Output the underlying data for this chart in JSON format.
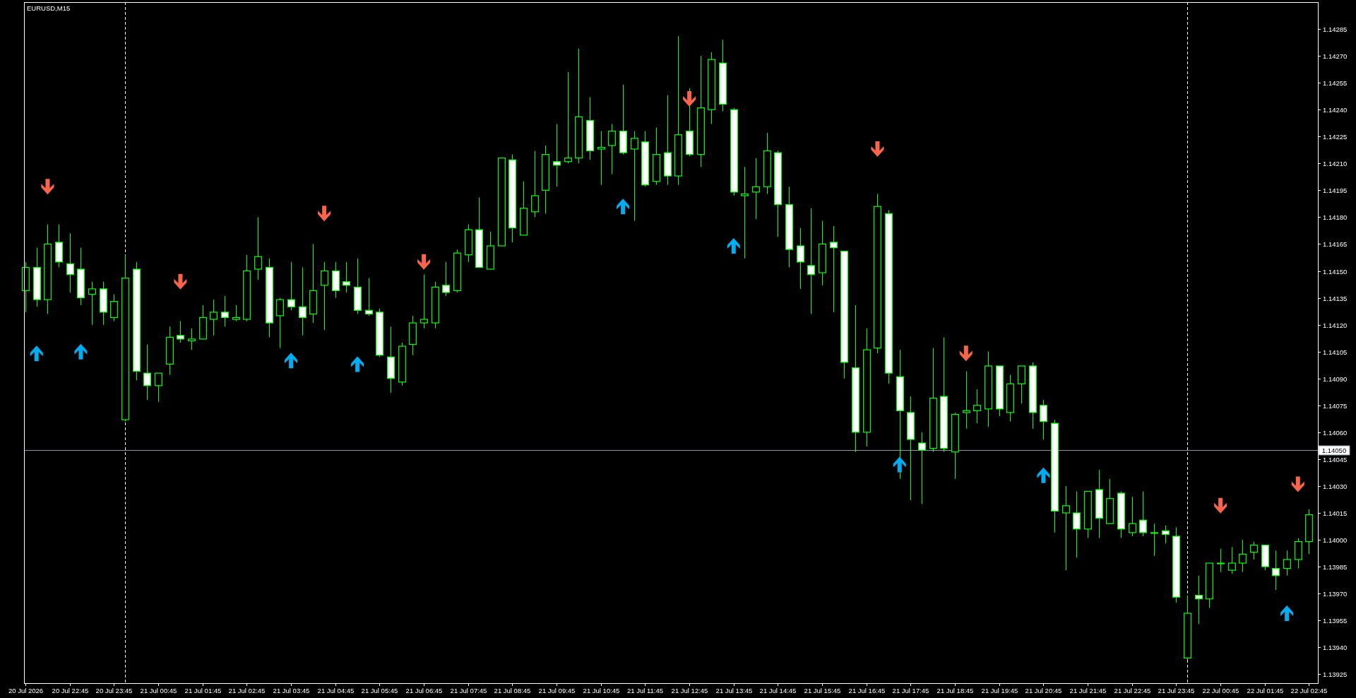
{
  "chart_data": {
    "type": "candlestick",
    "title": "EURUSD,M15",
    "x": [
      "2026-07-20T21:45",
      "2026-07-20T22:00",
      "2026-07-20T22:15",
      "2026-07-20T22:30",
      "2026-07-20T22:45",
      "2026-07-20T23:00",
      "2026-07-20T23:15",
      "2026-07-20T23:30",
      "2026-07-20T23:45",
      "2026-07-21T00:00",
      "2026-07-21T00:15",
      "2026-07-21T00:30",
      "2026-07-21T00:45",
      "2026-07-21T01:00",
      "2026-07-21T01:15",
      "2026-07-21T01:30",
      "2026-07-21T01:45",
      "2026-07-21T02:00",
      "2026-07-21T02:15",
      "2026-07-21T02:30",
      "2026-07-21T02:45",
      "2026-07-21T03:00",
      "2026-07-21T03:15",
      "2026-07-21T03:30",
      "2026-07-21T03:45",
      "2026-07-21T04:00",
      "2026-07-21T04:15",
      "2026-07-21T04:30",
      "2026-07-21T04:45",
      "2026-07-21T05:00",
      "2026-07-21T05:15",
      "2026-07-21T05:30",
      "2026-07-21T05:45",
      "2026-07-21T06:00",
      "2026-07-21T06:15",
      "2026-07-21T06:30",
      "2026-07-21T06:45",
      "2026-07-21T07:00",
      "2026-07-21T07:15",
      "2026-07-21T07:30",
      "2026-07-21T07:45",
      "2026-07-21T08:00",
      "2026-07-21T08:15",
      "2026-07-21T08:30",
      "2026-07-21T08:45",
      "2026-07-21T09:00",
      "2026-07-21T09:15",
      "2026-07-21T09:30",
      "2026-07-21T09:45",
      "2026-07-21T10:00",
      "2026-07-21T10:15",
      "2026-07-21T10:30",
      "2026-07-21T10:45",
      "2026-07-21T11:00",
      "2026-07-21T11:15",
      "2026-07-21T11:30",
      "2026-07-21T11:45",
      "2026-07-21T12:00",
      "2026-07-21T12:15",
      "2026-07-21T12:30",
      "2026-07-21T12:45",
      "2026-07-21T13:00",
      "2026-07-21T13:15",
      "2026-07-21T13:30",
      "2026-07-21T13:45",
      "2026-07-21T14:00",
      "2026-07-21T14:15",
      "2026-07-21T14:30",
      "2026-07-21T14:45",
      "2026-07-21T15:00",
      "2026-07-21T15:15",
      "2026-07-21T15:30",
      "2026-07-21T15:45",
      "2026-07-21T16:00",
      "2026-07-21T16:15",
      "2026-07-21T16:30",
      "2026-07-21T16:45",
      "2026-07-21T17:00",
      "2026-07-21T17:15",
      "2026-07-21T17:30",
      "2026-07-21T17:45",
      "2026-07-21T18:00",
      "2026-07-21T18:15",
      "2026-07-21T18:30",
      "2026-07-21T18:45",
      "2026-07-21T19:00",
      "2026-07-21T19:15",
      "2026-07-21T19:30",
      "2026-07-21T19:45",
      "2026-07-21T20:00",
      "2026-07-21T20:15",
      "2026-07-21T20:30",
      "2026-07-21T20:45",
      "2026-07-21T21:00",
      "2026-07-21T21:15",
      "2026-07-21T21:30",
      "2026-07-21T21:45",
      "2026-07-21T22:00",
      "2026-07-21T22:15",
      "2026-07-21T22:30",
      "2026-07-21T22:45",
      "2026-07-21T23:00",
      "2026-07-21T23:15",
      "2026-07-21T23:30",
      "2026-07-21T23:45",
      "2026-07-22T00:00",
      "2026-07-22T00:15",
      "2026-07-22T00:30",
      "2026-07-22T00:45",
      "2026-07-22T01:00",
      "2026-07-22T01:15",
      "2026-07-22T01:30",
      "2026-07-22T01:45",
      "2026-07-22T02:00",
      "2026-07-22T02:15",
      "2026-07-22T02:30",
      "2026-07-22T02:45"
    ],
    "ohlc": [
      [
        1.14139,
        1.14155,
        1.14127,
        1.14152
      ],
      [
        1.14152,
        1.14163,
        1.1413,
        1.14134
      ],
      [
        1.14134,
        1.14176,
        1.14126,
        1.14165
      ],
      [
        1.14166,
        1.14176,
        1.14152,
        1.14155
      ],
      [
        1.14154,
        1.14171,
        1.14138,
        1.14148
      ],
      [
        1.14151,
        1.14163,
        1.14131,
        1.14135
      ],
      [
        1.14137,
        1.14144,
        1.1412,
        1.1414
      ],
      [
        1.1414,
        1.14144,
        1.1412,
        1.14127
      ],
      [
        1.14124,
        1.14137,
        1.14122,
        1.14133
      ],
      [
        1.14067,
        1.14159,
        1.14066,
        1.14146
      ],
      [
        1.14151,
        1.14155,
        1.14089,
        1.14094
      ],
      [
        1.14093,
        1.14109,
        1.14078,
        1.14086
      ],
      [
        1.14086,
        1.14093,
        1.14077,
        1.14093
      ],
      [
        1.14098,
        1.14119,
        1.14092,
        1.14113
      ],
      [
        1.14114,
        1.14122,
        1.1411,
        1.14112
      ],
      [
        1.14111,
        1.14118,
        1.14106,
        1.14112
      ],
      [
        1.14112,
        1.14131,
        1.14112,
        1.14124
      ],
      [
        1.14123,
        1.14134,
        1.14114,
        1.14127
      ],
      [
        1.14127,
        1.14136,
        1.14119,
        1.14124
      ],
      [
        1.14123,
        1.14131,
        1.14122,
        1.14124
      ],
      [
        1.14123,
        1.14159,
        1.14122,
        1.1415
      ],
      [
        1.14151,
        1.1418,
        1.14145,
        1.14158
      ],
      [
        1.14152,
        1.14157,
        1.14113,
        1.14121
      ],
      [
        1.14125,
        1.14135,
        1.14107,
        1.14134
      ],
      [
        1.14134,
        1.14155,
        1.14128,
        1.1413
      ],
      [
        1.1413,
        1.14152,
        1.14114,
        1.14124
      ],
      [
        1.14126,
        1.14165,
        1.14121,
        1.14139
      ],
      [
        1.14142,
        1.14155,
        1.14117,
        1.1415
      ],
      [
        1.1415,
        1.14155,
        1.14135,
        1.14139
      ],
      [
        1.14144,
        1.14155,
        1.14138,
        1.14142
      ],
      [
        1.14141,
        1.14157,
        1.14126,
        1.14128
      ],
      [
        1.14128,
        1.14146,
        1.14125,
        1.14126
      ],
      [
        1.14127,
        1.14129,
        1.14102,
        1.14103
      ],
      [
        1.14102,
        1.14119,
        1.14082,
        1.1409
      ],
      [
        1.14088,
        1.1411,
        1.14086,
        1.14108
      ],
      [
        1.14109,
        1.14125,
        1.14103,
        1.14121
      ],
      [
        1.14121,
        1.14148,
        1.14118,
        1.14123
      ],
      [
        1.14121,
        1.14144,
        1.14118,
        1.14141
      ],
      [
        1.14142,
        1.14155,
        1.14136,
        1.14138
      ],
      [
        1.14139,
        1.14162,
        1.14138,
        1.1416
      ],
      [
        1.14159,
        1.14176,
        1.14155,
        1.14173
      ],
      [
        1.14173,
        1.14191,
        1.14152,
        1.14152
      ],
      [
        1.14151,
        1.14172,
        1.14151,
        1.14164
      ],
      [
        1.14164,
        1.14213,
        1.14164,
        1.14213
      ],
      [
        1.14212,
        1.14215,
        1.14166,
        1.14174
      ],
      [
        1.1417,
        1.142,
        1.1417,
        1.14185
      ],
      [
        1.14183,
        1.14217,
        1.1418,
        1.14192
      ],
      [
        1.14195,
        1.1422,
        1.14182,
        1.14215
      ],
      [
        1.14211,
        1.14232,
        1.14197,
        1.14209
      ],
      [
        1.14211,
        1.14261,
        1.1421,
        1.14213
      ],
      [
        1.14213,
        1.14274,
        1.1421,
        1.14236
      ],
      [
        1.14234,
        1.14247,
        1.14212,
        1.14217
      ],
      [
        1.14218,
        1.14228,
        1.14198,
        1.14219
      ],
      [
        1.1422,
        1.14232,
        1.14204,
        1.14228
      ],
      [
        1.14228,
        1.14254,
        1.14215,
        1.14216
      ],
      [
        1.14218,
        1.14228,
        1.14178,
        1.14224
      ],
      [
        1.14222,
        1.14228,
        1.14197,
        1.14198
      ],
      [
        1.142,
        1.1423,
        1.14198,
        1.14215
      ],
      [
        1.14216,
        1.14248,
        1.14198,
        1.14203
      ],
      [
        1.14203,
        1.14281,
        1.14198,
        1.14226
      ],
      [
        1.14228,
        1.14252,
        1.14214,
        1.14215
      ],
      [
        1.14215,
        1.1427,
        1.14208,
        1.14241
      ],
      [
        1.1424,
        1.14272,
        1.14232,
        1.14268
      ],
      [
        1.14266,
        1.14279,
        1.14239,
        1.14243
      ],
      [
        1.1424,
        1.14241,
        1.14192,
        1.14194
      ],
      [
        1.14192,
        1.14208,
        1.14157,
        1.14193
      ],
      [
        1.14194,
        1.14213,
        1.14179,
        1.14197
      ],
      [
        1.14197,
        1.14227,
        1.14193,
        1.14217
      ],
      [
        1.14216,
        1.14217,
        1.14169,
        1.14187
      ],
      [
        1.14187,
        1.14197,
        1.14152,
        1.14162
      ],
      [
        1.14164,
        1.14174,
        1.1414,
        1.14155
      ],
      [
        1.14153,
        1.14185,
        1.14126,
        1.14148
      ],
      [
        1.14149,
        1.14178,
        1.14142,
        1.14165
      ],
      [
        1.14166,
        1.14175,
        1.14127,
        1.14163
      ],
      [
        1.14161,
        1.14161,
        1.1409,
        1.14099
      ],
      [
        1.14096,
        1.14131,
        1.14049,
        1.1406
      ],
      [
        1.1406,
        1.14118,
        1.14052,
        1.14106
      ],
      [
        1.14107,
        1.14193,
        1.14104,
        1.14186
      ],
      [
        1.14182,
        1.14184,
        1.14087,
        1.14093
      ],
      [
        1.14091,
        1.14106,
        1.14034,
        1.14072
      ],
      [
        1.14071,
        1.1408,
        1.14022,
        1.14056
      ],
      [
        1.14054,
        1.1406,
        1.1402,
        1.1405
      ],
      [
        1.14051,
        1.14107,
        1.14049,
        1.14079
      ],
      [
        1.1408,
        1.14113,
        1.14049,
        1.14051
      ],
      [
        1.14049,
        1.14071,
        1.14034,
        1.1407
      ],
      [
        1.14071,
        1.14094,
        1.14062,
        1.14072
      ],
      [
        1.14072,
        1.14084,
        1.14065,
        1.14075
      ],
      [
        1.14073,
        1.14105,
        1.14063,
        1.14097
      ],
      [
        1.14097,
        1.14097,
        1.14069,
        1.14073
      ],
      [
        1.14071,
        1.14092,
        1.14066,
        1.14087
      ],
      [
        1.14087,
        1.14097,
        1.14076,
        1.14097
      ],
      [
        1.14097,
        1.14099,
        1.14062,
        1.14071
      ],
      [
        1.14075,
        1.14078,
        1.14056,
        1.14066
      ],
      [
        1.14065,
        1.14067,
        1.14004,
        1.14016
      ],
      [
        1.14015,
        1.1403,
        1.13983,
        1.14019
      ],
      [
        1.14015,
        1.14027,
        1.1399,
        1.14006
      ],
      [
        1.14006,
        1.14027,
        1.14001,
        1.14027
      ],
      [
        1.14028,
        1.14039,
        1.14001,
        1.14012
      ],
      [
        1.14009,
        1.14034,
        1.14009,
        1.14023
      ],
      [
        1.14026,
        1.14027,
        1.14001,
        1.14006
      ],
      [
        1.14004,
        1.14024,
        1.14002,
        1.14009
      ],
      [
        1.14011,
        1.14027,
        1.14002,
        1.14004
      ],
      [
        1.14004,
        1.14009,
        1.13991,
        1.14004
      ],
      [
        1.14005,
        1.14008,
        1.13998,
        1.14003
      ],
      [
        1.14002,
        1.14007,
        1.13965,
        1.13968
      ],
      [
        1.13934,
        1.13969,
        1.13933,
        1.13959
      ],
      [
        1.13969,
        1.1398,
        1.13953,
        1.13967
      ],
      [
        1.13967,
        1.13987,
        1.13962,
        1.13987
      ],
      [
        1.13987,
        1.13995,
        1.13982,
        1.13987
      ],
      [
        1.13983,
        1.13996,
        1.13981,
        1.13987
      ],
      [
        1.13987,
        1.14,
        1.13982,
        1.13992
      ],
      [
        1.13993,
        1.13999,
        1.13989,
        1.13997
      ],
      [
        1.13997,
        1.13997,
        1.13983,
        1.13985
      ],
      [
        1.13984,
        1.13994,
        1.13972,
        1.1398
      ],
      [
        1.13984,
        1.13994,
        1.1398,
        1.13989
      ],
      [
        1.13989,
        1.14001,
        1.13984,
        1.13999
      ],
      [
        1.13999,
        1.14017,
        1.13992,
        1.14014
      ]
    ],
    "color": "#00ff00",
    "colors": [
      "#000000",
      "#ffffff",
      "#000000",
      "#ffffff",
      "#ffffff",
      "#ffffff",
      "#000000",
      "#ffffff",
      "#000000",
      "#000000",
      "#ffffff",
      "#ffffff",
      "#000000",
      "#000000",
      "#ffffff",
      "#000000",
      "#000000",
      "#000000",
      "#ffffff",
      "#000000",
      "#000000",
      "#000000",
      "#ffffff",
      "#000000",
      "#ffffff",
      "#ffffff",
      "#000000",
      "#000000",
      "#ffffff",
      "#ffffff",
      "#ffffff",
      "#ffffff",
      "#ffffff",
      "#ffffff",
      "#000000",
      "#000000",
      "#000000",
      "#000000",
      "#ffffff",
      "#000000",
      "#000000",
      "#ffffff",
      "#000000",
      "#000000",
      "#ffffff",
      "#000000",
      "#000000",
      "#000000",
      "#ffffff",
      "#000000",
      "#000000",
      "#ffffff",
      "#000000",
      "#000000",
      "#ffffff",
      "#000000",
      "#ffffff",
      "#000000",
      "#ffffff",
      "#000000",
      "#ffffff",
      "#000000",
      "#000000",
      "#ffffff",
      "#ffffff",
      "#000000",
      "#000000",
      "#000000",
      "#ffffff",
      "#ffffff",
      "#ffffff",
      "#ffffff",
      "#000000",
      "#ffffff",
      "#ffffff",
      "#ffffff",
      "#000000",
      "#000000",
      "#ffffff",
      "#ffffff",
      "#ffffff",
      "#ffffff",
      "#000000",
      "#ffffff",
      "#000000",
      "#000000",
      "#000000",
      "#000000",
      "#ffffff",
      "#000000",
      "#000000",
      "#ffffff",
      "#ffffff",
      "#ffffff",
      "#000000",
      "#ffffff",
      "#000000",
      "#ffffff",
      "#000000",
      "#ffffff",
      "#000000",
      "#ffffff",
      "#000000",
      "#ffffff",
      "#ffffff",
      "#000000",
      "#ffffff",
      "#000000",
      "#000000",
      "#000000",
      "#000000",
      "#000000",
      "#ffffff",
      "#ffffff",
      "#000000",
      "#000000",
      "#000000"
    ],
    "series": [
      {
        "type": "scatter",
        "color": "#f9654b",
        "marker": "triangle",
        "x": [
          "2026-07-20T22:15",
          "2026-07-21T01:15",
          "2026-07-21T04:30",
          "2026-07-21T06:45",
          "2026-07-21T12:45",
          "2026-07-21T17:00",
          "2026-07-21T19:00",
          "2026-07-22T00:45",
          "2026-07-22T02:30"
        ],
        "values": [
          1.14197,
          1.14144,
          1.14182,
          1.14155,
          1.14246,
          1.14218,
          1.14104,
          1.14019,
          1.14031
        ]
      },
      {
        "type": "scatter",
        "color": "#00aeef",
        "marker": "triangle",
        "x": [
          "2026-07-20T22:00",
          "2026-07-20T23:00",
          "2026-07-21T03:45",
          "2026-07-21T05:15",
          "2026-07-21T11:15",
          "2026-07-21T13:45",
          "2026-07-21T17:30",
          "2026-07-21T20:45",
          "2026-07-22T02:15"
        ],
        "values": [
          1.14104,
          1.14105,
          1.141,
          1.14098,
          1.14186,
          1.14164,
          1.14042,
          1.14036,
          1.13959
        ]
      }
    ],
    "xlim": [
      "2026-07-20T21:43",
      "2026-07-22T02:57"
    ],
    "ylim": [
      1.1392,
      1.143
    ],
    "xticks": [
      {
        "value": "2026-07-20T21:45",
        "label": "20 Jul 2026"
      },
      {
        "value": "2026-07-20T22:45",
        "label": "20 Jul 22:45"
      },
      {
        "value": "2026-07-20T23:45",
        "label": "20 Jul 23:45"
      },
      {
        "value": "2026-07-21T00:45",
        "label": "21 Jul 00:45"
      },
      {
        "value": "2026-07-21T01:45",
        "label": "21 Jul 01:45"
      },
      {
        "value": "2026-07-21T02:45",
        "label": "21 Jul 02:45"
      },
      {
        "value": "2026-07-21T03:45",
        "label": "21 Jul 03:45"
      },
      {
        "value": "2026-07-21T04:45",
        "label": "21 Jul 04:45"
      },
      {
        "value": "2026-07-21T05:45",
        "label": "21 Jul 05:45"
      },
      {
        "value": "2026-07-21T06:45",
        "label": "21 Jul 06:45"
      },
      {
        "value": "2026-07-21T07:45",
        "label": "21 Jul 07:45"
      },
      {
        "value": "2026-07-21T08:45",
        "label": "21 Jul 08:45"
      },
      {
        "value": "2026-07-21T09:45",
        "label": "21 Jul 09:45"
      },
      {
        "value": "2026-07-21T10:45",
        "label": "21 Jul 10:45"
      },
      {
        "value": "2026-07-21T11:45",
        "label": "21 Jul 11:45"
      },
      {
        "value": "2026-07-21T12:45",
        "label": "21 Jul 12:45"
      },
      {
        "value": "2026-07-21T13:45",
        "label": "21 Jul 13:45"
      },
      {
        "value": "2026-07-21T14:45",
        "label": "21 Jul 14:45"
      },
      {
        "value": "2026-07-21T15:45",
        "label": "21 Jul 15:45"
      },
      {
        "value": "2026-07-21T16:45",
        "label": "21 Jul 16:45"
      },
      {
        "value": "2026-07-21T17:45",
        "label": "21 Jul 17:45"
      },
      {
        "value": "2026-07-21T18:45",
        "label": "21 Jul 18:45"
      },
      {
        "value": "2026-07-21T19:45",
        "label": "21 Jul 19:45"
      },
      {
        "value": "2026-07-21T20:45",
        "label": "21 Jul 20:45"
      },
      {
        "value": "2026-07-21T21:45",
        "label": "21 Jul 21:45"
      },
      {
        "value": "2026-07-21T22:45",
        "label": "21 Jul 22:45"
      },
      {
        "value": "2026-07-21T23:45",
        "label": "21 Jul 23:45"
      },
      {
        "value": "2026-07-22T00:45",
        "label": "22 Jul 00:45"
      },
      {
        "value": "2026-07-22T01:45",
        "label": "22 Jul 01:45"
      },
      {
        "value": "2026-07-22T02:45",
        "label": "22 Jul 02:45"
      }
    ],
    "yticks": [
      1.13925,
      {
        "value": 1.1394,
        "label": "1.13940"
      },
      1.13955,
      {
        "value": 1.1397,
        "label": "1.13970"
      },
      1.13985,
      {
        "value": 1.14,
        "label": "1.14000"
      },
      1.14015,
      {
        "value": 1.1403,
        "label": "1.14030"
      },
      1.14045,
      {
        "value": 1.1406,
        "label": "1.14060"
      },
      1.14075,
      {
        "value": 1.1409,
        "label": "1.14090"
      },
      1.14105,
      {
        "value": 1.1412,
        "label": "1.14120"
      },
      1.14135,
      {
        "value": 1.1415,
        "label": "1.14150"
      },
      1.14165,
      {
        "value": 1.1418,
        "label": "1.14180"
      },
      1.14195,
      {
        "value": 1.1421,
        "label": "1.14210"
      },
      1.14225,
      {
        "value": 1.1424,
        "label": "1.14240"
      },
      1.14255,
      {
        "value": 1.1427,
        "label": "1.14270"
      },
      1.14285
    ],
    "ref_lines": [
      {
        "axis": "y",
        "value": 1.1405,
        "label": "1.14050",
        "color": "#8a96a3",
        "line_style": "solid"
      },
      {
        "axis": "x",
        "value": "2026-07-21T00:00",
        "color": "#ffffff",
        "line_style": "dashed"
      },
      {
        "axis": "x",
        "value": "2026-07-22T00:00",
        "color": "#ffffff",
        "line_style": "dashed"
      }
    ]
  }
}
